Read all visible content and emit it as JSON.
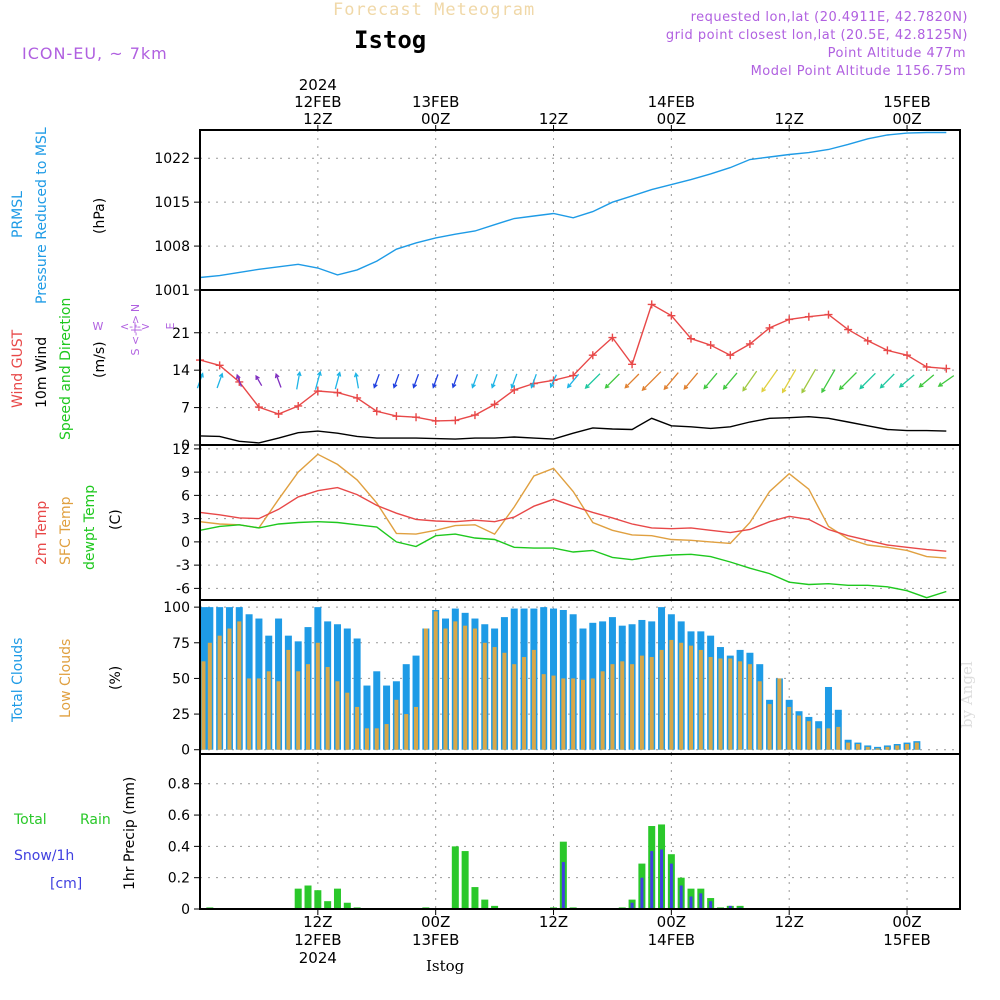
{
  "header": {
    "title_faint": "Forecast Meteogram",
    "location": "Istog",
    "model": "ICON-EU, ~ 7km",
    "requested": "requested lon,lat (20.4911E, 42.7820N)",
    "grid_point": "grid point closest lon,lat (20.5E, 42.8125N)",
    "point_alt": "Point Altitude 477m",
    "model_alt": "Model Point Altitude 1156.75m",
    "footer_location": "Istog",
    "credit": "by Angel"
  },
  "time_axis": {
    "top": [
      {
        "x": 12,
        "lines": [
          "2024",
          "12FEB",
          "12Z"
        ]
      },
      {
        "x": 24,
        "lines": [
          "13FEB",
          "00Z"
        ]
      },
      {
        "x": 36,
        "lines": [
          "12Z"
        ]
      },
      {
        "x": 48,
        "lines": [
          "14FEB",
          "00Z"
        ]
      },
      {
        "x": 60,
        "lines": [
          "12Z"
        ]
      },
      {
        "x": 72,
        "lines": [
          "15FEB",
          "00Z"
        ]
      }
    ],
    "bottom": [
      {
        "x": 12,
        "lines": [
          "12Z",
          "12FEB",
          "2024"
        ]
      },
      {
        "x": 24,
        "lines": [
          "00Z",
          "13FEB"
        ]
      },
      {
        "x": 36,
        "lines": [
          "12Z"
        ]
      },
      {
        "x": 48,
        "lines": [
          "00Z",
          "14FEB"
        ]
      },
      {
        "x": 60,
        "lines": [
          "12Z"
        ]
      },
      {
        "x": 72,
        "lines": [
          "00Z",
          "15FEB"
        ]
      }
    ]
  },
  "panels": {
    "pressure": {
      "labels": [
        "PRMSL",
        "Pressure Reduced to MSL",
        "(hPa)"
      ]
    },
    "wind": {
      "labels": [
        "Wind GUST",
        "10m Wind",
        "Speed and Direction",
        "(m/s)"
      ],
      "compass": {
        "n": "N",
        "s": "S",
        "w": "W",
        "e": "E"
      }
    },
    "temp": {
      "labels": [
        "2m Temp",
        "SFC Temp",
        "dewpt Temp",
        "(C)"
      ]
    },
    "clouds": {
      "labels": [
        "Total Clouds",
        "Low Clouds",
        "(%)"
      ]
    },
    "precip": {
      "labels": [
        "Total",
        "Rain",
        "Snow/1h",
        "[cm]",
        "1hr Precip (mm)"
      ]
    }
  },
  "colors": {
    "pressure": "#1e9be6",
    "gust": "#e84848",
    "wind": "#000000",
    "t2m": "#e84848",
    "tsfc": "#e0a040",
    "dewpt": "#1ec81e",
    "total_clouds": "#1e9be6",
    "low_clouds": "#d7a84a",
    "rain": "#2ac82a",
    "snow": "#4040e0",
    "title_faint": "#f0d8a8",
    "info": "#b060e0",
    "grid": "#999999"
  },
  "chart_data": [
    {
      "type": "line",
      "title": "PRMSL Pressure Reduced to MSL",
      "ylabel": "(hPa)",
      "x_unit": "forecast hour (0 = 12FEB 00Z)",
      "ylim": [
        1001,
        1026.5
      ],
      "yticks": [
        1001,
        1008,
        1015,
        1022
      ],
      "x": [
        0,
        2,
        4,
        6,
        8,
        10,
        12,
        14,
        16,
        18,
        20,
        22,
        24,
        26,
        28,
        30,
        32,
        34,
        36,
        38,
        40,
        42,
        44,
        46,
        48,
        50,
        52,
        54,
        56,
        58,
        60,
        62,
        64,
        66,
        68,
        70,
        72,
        74,
        76
      ],
      "series": [
        {
          "name": "PRMSL",
          "values": [
            1003.0,
            1003.3,
            1003.8,
            1004.3,
            1004.7,
            1005.1,
            1004.5,
            1003.4,
            1004.2,
            1005.6,
            1007.5,
            1008.5,
            1009.3,
            1009.9,
            1010.4,
            1011.4,
            1012.4,
            1012.8,
            1013.2,
            1012.5,
            1013.5,
            1015.0,
            1016.0,
            1017.0,
            1017.8,
            1018.6,
            1019.5,
            1020.5,
            1021.8,
            1022.2,
            1022.6,
            1022.9,
            1023.4,
            1024.2,
            1025.1,
            1025.7,
            1026.0,
            1026.1,
            1026.1
          ]
        }
      ]
    },
    {
      "type": "line",
      "title": "Wind GUST / 10m Wind Speed and Direction",
      "ylabel": "(m/s)",
      "ylim": [
        0,
        29
      ],
      "yticks": [
        0,
        7,
        14,
        21
      ],
      "x": [
        0,
        2,
        4,
        6,
        8,
        10,
        12,
        14,
        16,
        18,
        20,
        22,
        24,
        26,
        28,
        30,
        32,
        34,
        36,
        38,
        40,
        42,
        44,
        46,
        48,
        50,
        52,
        54,
        56,
        58,
        60,
        62,
        64,
        66,
        68,
        70,
        72,
        74,
        76
      ],
      "series": [
        {
          "name": "Wind GUST",
          "values": [
            15.9,
            14.9,
            11.8,
            7.1,
            5.8,
            7.3,
            10.1,
            9.8,
            8.8,
            6.3,
            5.4,
            5.2,
            4.5,
            4.6,
            5.6,
            7.6,
            10.3,
            11.5,
            12.1,
            13.0,
            16.8,
            20.1,
            15.1,
            26.3,
            24.2,
            19.9,
            18.7,
            16.8,
            18.9,
            21.9,
            23.5,
            24.0,
            24.4,
            21.6,
            19.5,
            17.7,
            16.8,
            14.6,
            14.3
          ]
        },
        {
          "name": "10m Wind",
          "values": [
            1.7,
            1.6,
            0.7,
            0.4,
            1.3,
            2.3,
            2.6,
            2.2,
            1.6,
            1.3,
            1.3,
            1.3,
            1.2,
            1.1,
            1.3,
            1.3,
            1.5,
            1.3,
            1.1,
            2.2,
            3.2,
            3.0,
            2.9,
            5.0,
            3.6,
            3.4,
            3.1,
            3.4,
            4.3,
            5.0,
            5.1,
            5.3,
            5.0,
            4.3,
            3.6,
            2.9,
            2.7,
            2.7,
            2.6
          ]
        }
      ],
      "wind_barbs": {
        "x": [
          0,
          2,
          4,
          6,
          8,
          10,
          12,
          14,
          16,
          18,
          20,
          22,
          24,
          26,
          28,
          30,
          32,
          34,
          36,
          38,
          40,
          42,
          44,
          46,
          48,
          50,
          52,
          54,
          56,
          58,
          60,
          62,
          64,
          66,
          68,
          70,
          72,
          74,
          76
        ],
        "dir_deg": [
          200,
          200,
          160,
          150,
          160,
          190,
          195,
          195,
          170,
          20,
          20,
          20,
          20,
          20,
          20,
          20,
          20,
          20,
          25,
          40,
          45,
          45,
          45,
          45,
          40,
          40,
          40,
          40,
          35,
          35,
          30,
          30,
          30,
          45,
          45,
          45,
          50,
          50,
          55
        ],
        "color": [
          "#1eb4e6",
          "#1eb4e6",
          "#8030c0",
          "#8030c0",
          "#8030c0",
          "#1eb4e6",
          "#1eb4e6",
          "#1eb4e6",
          "#1eb4e6",
          "#2040e0",
          "#2040e0",
          "#2040e0",
          "#2040e0",
          "#2040e0",
          "#1eb4e6",
          "#1eb4e6",
          "#1eb4e6",
          "#1eb4e6",
          "#1eb4e6",
          "#1eb4e6",
          "#1ec8a0",
          "#40c840",
          "#e08030",
          "#e08030",
          "#e08030",
          "#e08030",
          "#40c840",
          "#40c840",
          "#a0c840",
          "#e0d040",
          "#e0d040",
          "#a0c840",
          "#40c840",
          "#40c840",
          "#1ec8a0",
          "#1ec8a0",
          "#1ec8a0",
          "#40c840",
          "#40c840"
        ]
      }
    },
    {
      "type": "line",
      "title": "2m Temp / SFC Temp / dewpt Temp",
      "ylabel": "(C)",
      "ylim": [
        -7.5,
        12.5
      ],
      "yticks": [
        -6,
        -3,
        0,
        3,
        6,
        9,
        12
      ],
      "x": [
        0,
        2,
        4,
        6,
        8,
        10,
        12,
        14,
        16,
        18,
        20,
        22,
        24,
        26,
        28,
        30,
        32,
        34,
        36,
        38,
        40,
        42,
        44,
        46,
        48,
        50,
        52,
        54,
        56,
        58,
        60,
        62,
        64,
        66,
        68,
        70,
        72,
        74,
        76
      ],
      "series": [
        {
          "name": "2m Temp",
          "values": [
            3.8,
            3.5,
            3.1,
            3.0,
            4.2,
            5.8,
            6.6,
            7.0,
            6.1,
            4.7,
            3.7,
            2.9,
            2.7,
            2.6,
            2.8,
            2.6,
            3.2,
            4.6,
            5.5,
            4.6,
            3.8,
            3.1,
            2.3,
            1.8,
            1.7,
            1.8,
            1.5,
            1.2,
            1.6,
            2.6,
            3.3,
            2.9,
            1.6,
            0.8,
            0.2,
            -0.4,
            -0.7,
            -1.0,
            -1.2
          ]
        },
        {
          "name": "SFC Temp",
          "values": [
            2.6,
            2.3,
            2.2,
            1.8,
            5.5,
            9.0,
            11.3,
            10.0,
            8.0,
            5.0,
            1.1,
            1.0,
            1.5,
            2.1,
            2.2,
            1.0,
            4.5,
            8.5,
            9.5,
            6.5,
            2.5,
            1.5,
            0.9,
            0.8,
            0.3,
            0.2,
            0.0,
            -0.2,
            2.5,
            6.5,
            8.8,
            6.8,
            2.0,
            0.4,
            -0.4,
            -0.7,
            -1.1,
            -1.9,
            -2.1
          ]
        },
        {
          "name": "dewpt Temp",
          "values": [
            1.5,
            2.0,
            2.2,
            1.8,
            2.3,
            2.5,
            2.6,
            2.5,
            2.2,
            1.9,
            0.0,
            -0.6,
            0.8,
            1.0,
            0.5,
            0.3,
            -0.7,
            -0.8,
            -0.8,
            -1.3,
            -1.1,
            -2.0,
            -2.3,
            -1.9,
            -1.7,
            -1.6,
            -1.9,
            -2.6,
            -3.4,
            -4.1,
            -5.2,
            -5.5,
            -5.4,
            -5.6,
            -5.6,
            -5.8,
            -6.3,
            -7.2,
            -6.4
          ]
        }
      ]
    },
    {
      "type": "bar",
      "title": "Total Clouds / Low Clouds",
      "ylabel": "(%)",
      "ylim": [
        -3,
        105
      ],
      "yticks": [
        0,
        25,
        50,
        75,
        100
      ],
      "x": [
        0,
        1,
        2,
        3,
        4,
        5,
        6,
        7,
        8,
        9,
        10,
        11,
        12,
        13,
        14,
        15,
        16,
        17,
        18,
        19,
        20,
        21,
        22,
        23,
        24,
        25,
        26,
        27,
        28,
        29,
        30,
        31,
        32,
        33,
        34,
        35,
        36,
        37,
        38,
        39,
        40,
        41,
        42,
        43,
        44,
        45,
        46,
        47,
        48,
        49,
        50,
        51,
        52,
        53,
        54,
        55,
        56,
        57,
        58,
        59,
        60,
        61,
        62,
        63,
        64,
        65,
        66,
        67,
        68,
        69,
        70,
        71,
        72,
        73,
        74,
        75,
        76
      ],
      "series": [
        {
          "name": "Total Clouds",
          "values": [
            100,
            100,
            100,
            100,
            100,
            95,
            92,
            80,
            92,
            80,
            76,
            86,
            100,
            90,
            88,
            85,
            78,
            45,
            55,
            45,
            48,
            60,
            66,
            85,
            98,
            92,
            99,
            96,
            92,
            88,
            85,
            93,
            99,
            99,
            99,
            100,
            99,
            98,
            95,
            85,
            89,
            90,
            93,
            87,
            88,
            91,
            90,
            100,
            95,
            90,
            83,
            83,
            80,
            72,
            66,
            70,
            68,
            60,
            35,
            50,
            35,
            27,
            23,
            20,
            44,
            28,
            7,
            5,
            3,
            2,
            3,
            4,
            5,
            6,
            0,
            0,
            0
          ]
        },
        {
          "name": "Low Clouds",
          "values": [
            62,
            75,
            80,
            85,
            90,
            50,
            50,
            55,
            48,
            70,
            55,
            60,
            75,
            58,
            48,
            40,
            30,
            15,
            15,
            18,
            35,
            25,
            30,
            85,
            97,
            85,
            90,
            87,
            85,
            75,
            72,
            68,
            60,
            65,
            70,
            53,
            52,
            50,
            50,
            49,
            50,
            55,
            60,
            62,
            60,
            66,
            65,
            70,
            77,
            75,
            73,
            70,
            65,
            64,
            64,
            62,
            60,
            48,
            32,
            50,
            30,
            24,
            20,
            15,
            15,
            16,
            5,
            4,
            2,
            1,
            2,
            3,
            4,
            5,
            0,
            0,
            0
          ]
        }
      ]
    },
    {
      "type": "bar",
      "title": "1hr Precip (mm)",
      "ylabel": "1hr Precip (mm)",
      "ylim": [
        0,
        0.99
      ],
      "yticks": [
        0,
        0.2,
        0.4,
        0.6,
        0.8
      ],
      "yticklabels": [
        "0",
        "0.2",
        "0.4",
        "0.6",
        "0.8"
      ],
      "x": [
        1,
        10,
        11,
        12,
        13,
        14,
        15,
        16,
        23,
        26,
        27,
        28,
        29,
        30,
        36,
        37,
        38,
        43,
        44,
        45,
        46,
        47,
        48,
        49,
        50,
        51,
        52,
        53,
        54,
        55
      ],
      "series": [
        {
          "name": "Total Rain",
          "values": [
            0.01,
            0.13,
            0.15,
            0.12,
            0.05,
            0.13,
            0.04,
            0.01,
            0.01,
            0.4,
            0.37,
            0.14,
            0.06,
            0.02,
            0.01,
            0.43,
            0.01,
            0.01,
            0.06,
            0.29,
            0.53,
            0.54,
            0.35,
            0.2,
            0.13,
            0.13,
            0.07,
            0.01,
            0.02,
            0.02
          ]
        },
        {
          "name": "Snow/1h",
          "values": [
            0,
            0,
            0,
            0,
            0,
            0,
            0,
            0,
            0,
            0,
            0,
            0,
            0,
            0,
            0,
            0.3,
            0,
            0,
            0.04,
            0.2,
            0.37,
            0.38,
            0.29,
            0.15,
            0.08,
            0.1,
            0.05,
            0,
            0.02,
            0.01
          ]
        }
      ]
    }
  ]
}
